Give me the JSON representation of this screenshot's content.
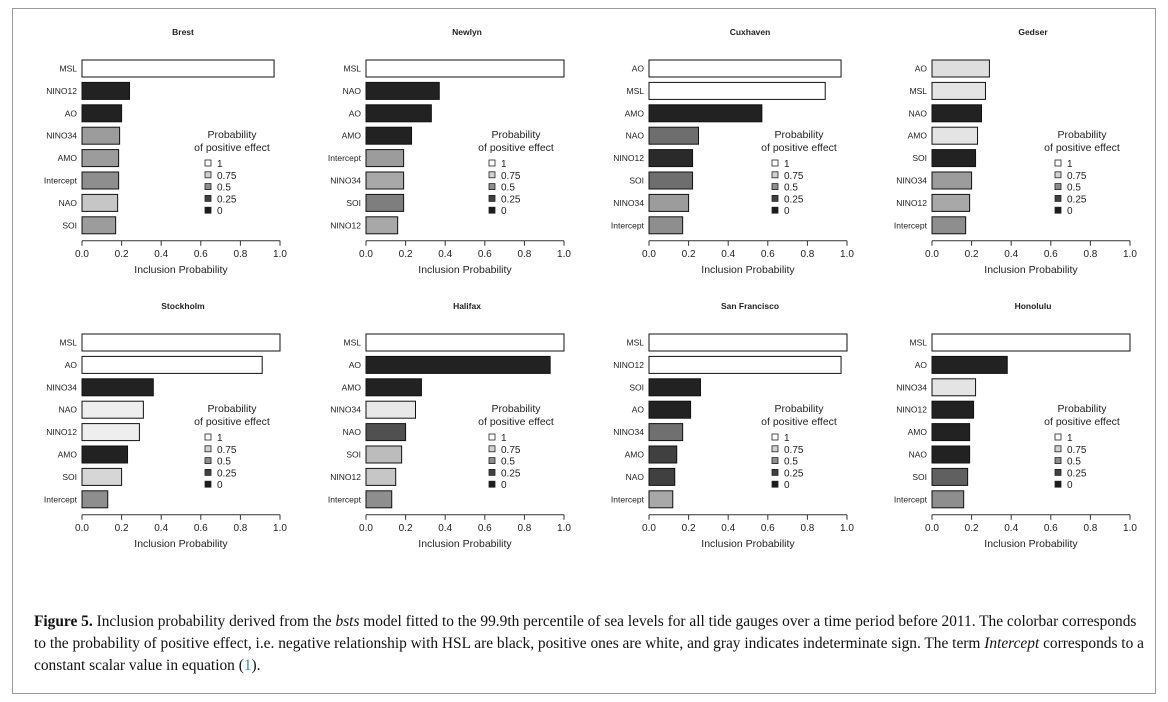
{
  "figure": {
    "caption": {
      "label": "Figure 5.",
      "part1": " Inclusion probability derived from the ",
      "model": "bsts",
      "part2": " model fitted to the 99.9th percentile of sea levels for all tide gauges over a time period before 2011. The colorbar corresponds to the probability of positive effect, i.e. negative relationship with HSL are black, positive ones are white, and gray indicates indeterminate sign. The term ",
      "intercept": "Intercept",
      "part3": " corresponds to a constant scalar value in equation (",
      "eq": "1",
      "part4": ")."
    }
  },
  "legend": {
    "title_line1": "Probability",
    "title_line2": "of positive effect",
    "entries": [
      {
        "label": "1",
        "color": "#ffffff"
      },
      {
        "label": "0.75",
        "color": "#d2d2d2"
      },
      {
        "label": "0.5",
        "color": "#8e8e8e"
      },
      {
        "label": "0.25",
        "color": "#404040"
      },
      {
        "label": "0",
        "color": "#1c1c1c"
      }
    ]
  },
  "chart_data": [
    {
      "type": "bar",
      "orientation": "horizontal",
      "title": "Brest",
      "xlabel": "Inclusion Probability",
      "xlim": [
        0,
        1
      ],
      "xticks": [
        "0.0",
        "0.2",
        "0.4",
        "0.6",
        "0.8",
        "1.0"
      ],
      "categories": [
        "MSL",
        "NINO12",
        "AO",
        "NINO34",
        "AMO",
        "Intercept",
        "NAO",
        "SOI"
      ],
      "values": [
        0.97,
        0.24,
        0.2,
        0.19,
        0.185,
        0.185,
        0.18,
        0.17
      ],
      "colors": [
        "#ffffff",
        "#222222",
        "#222222",
        "#9c9c9c",
        "#9c9c9c",
        "#8e8e8e",
        "#c6c6c6",
        "#9c9c9c"
      ]
    },
    {
      "type": "bar",
      "orientation": "horizontal",
      "title": "Newlyn",
      "xlabel": "Inclusion Probability",
      "xlim": [
        0,
        1
      ],
      "xticks": [
        "0.0",
        "0.2",
        "0.4",
        "0.6",
        "0.8",
        "1.0"
      ],
      "categories": [
        "MSL",
        "NAO",
        "AO",
        "AMO",
        "Intercept",
        "NINO34",
        "SOI",
        "NINO12"
      ],
      "values": [
        1.0,
        0.37,
        0.33,
        0.23,
        0.19,
        0.19,
        0.19,
        0.16
      ],
      "colors": [
        "#ffffff",
        "#222222",
        "#222222",
        "#222222",
        "#9c9c9c",
        "#a8a8a8",
        "#7e7e7e",
        "#a8a8a8"
      ]
    },
    {
      "type": "bar",
      "orientation": "horizontal",
      "title": "Cuxhaven",
      "xlabel": "Inclusion Probability",
      "xlim": [
        0,
        1
      ],
      "xticks": [
        "0.0",
        "0.2",
        "0.4",
        "0.6",
        "0.8",
        "1.0"
      ],
      "categories": [
        "AO",
        "MSL",
        "AMO",
        "NAO",
        "NINO12",
        "SOI",
        "NINO34",
        "Intercept"
      ],
      "values": [
        0.97,
        0.89,
        0.57,
        0.25,
        0.22,
        0.22,
        0.2,
        0.17
      ],
      "colors": [
        "#ffffff",
        "#ffffff",
        "#222222",
        "#6e6e6e",
        "#2a2a2a",
        "#6e6e6e",
        "#9c9c9c",
        "#8e8e8e"
      ]
    },
    {
      "type": "bar",
      "orientation": "horizontal",
      "title": "Gedser",
      "xlabel": "Inclusion Probability",
      "xlim": [
        0,
        1
      ],
      "xticks": [
        "0.0",
        "0.2",
        "0.4",
        "0.6",
        "0.8",
        "1.0"
      ],
      "categories": [
        "AO",
        "MSL",
        "NAO",
        "AMO",
        "SOI",
        "NINO34",
        "NINO12",
        "Intercept"
      ],
      "values": [
        0.29,
        0.27,
        0.25,
        0.23,
        0.22,
        0.2,
        0.19,
        0.17
      ],
      "colors": [
        "#dedede",
        "#e4e4e4",
        "#222222",
        "#e4e4e4",
        "#222222",
        "#9c9c9c",
        "#a8a8a8",
        "#8e8e8e"
      ]
    },
    {
      "type": "bar",
      "orientation": "horizontal",
      "title": "Stockholm",
      "xlabel": "Inclusion Probability",
      "xlim": [
        0,
        1
      ],
      "xticks": [
        "0.0",
        "0.2",
        "0.4",
        "0.6",
        "0.8",
        "1.0"
      ],
      "categories": [
        "MSL",
        "AO",
        "NINO34",
        "NAO",
        "NINO12",
        "AMO",
        "SOI",
        "Intercept"
      ],
      "values": [
        1.0,
        0.91,
        0.36,
        0.31,
        0.29,
        0.23,
        0.2,
        0.13
      ],
      "colors": [
        "#ffffff",
        "#ffffff",
        "#222222",
        "#eeeeee",
        "#eeeeee",
        "#222222",
        "#d6d6d6",
        "#8e8e8e"
      ]
    },
    {
      "type": "bar",
      "orientation": "horizontal",
      "title": "Halifax",
      "xlabel": "Inclusion Probability",
      "xlim": [
        0,
        1
      ],
      "xticks": [
        "0.0",
        "0.2",
        "0.4",
        "0.6",
        "0.8",
        "1.0"
      ],
      "categories": [
        "MSL",
        "AO",
        "AMO",
        "NINO34",
        "NAO",
        "SOI",
        "NINO12",
        "Intercept"
      ],
      "values": [
        1.0,
        0.93,
        0.28,
        0.25,
        0.2,
        0.18,
        0.15,
        0.13
      ],
      "colors": [
        "#ffffff",
        "#222222",
        "#222222",
        "#e8e8e8",
        "#505050",
        "#bcbcbc",
        "#c6c6c6",
        "#8e8e8e"
      ]
    },
    {
      "type": "bar",
      "orientation": "horizontal",
      "title": "San Francisco",
      "xlabel": "Inclusion Probability",
      "xlim": [
        0,
        1
      ],
      "xticks": [
        "0.0",
        "0.2",
        "0.4",
        "0.6",
        "0.8",
        "1.0"
      ],
      "categories": [
        "MSL",
        "NINO12",
        "SOI",
        "AO",
        "NINO34",
        "AMO",
        "NAO",
        "Intercept"
      ],
      "values": [
        1.0,
        0.97,
        0.26,
        0.21,
        0.17,
        0.14,
        0.13,
        0.12
      ],
      "colors": [
        "#ffffff",
        "#ffffff",
        "#222222",
        "#222222",
        "#707070",
        "#404040",
        "#404040",
        "#a8a8a8"
      ]
    },
    {
      "type": "bar",
      "orientation": "horizontal",
      "title": "Honolulu",
      "xlabel": "Inclusion Probability",
      "xlim": [
        0,
        1
      ],
      "xticks": [
        "0.0",
        "0.2",
        "0.4",
        "0.6",
        "0.8",
        "1.0"
      ],
      "categories": [
        "MSL",
        "AO",
        "NINO34",
        "NINO12",
        "AMO",
        "NAO",
        "SOI",
        "Intercept"
      ],
      "values": [
        1.0,
        0.38,
        0.22,
        0.21,
        0.19,
        0.19,
        0.18,
        0.16
      ],
      "colors": [
        "#ffffff",
        "#222222",
        "#e4e4e4",
        "#222222",
        "#222222",
        "#222222",
        "#606060",
        "#8e8e8e"
      ]
    }
  ]
}
